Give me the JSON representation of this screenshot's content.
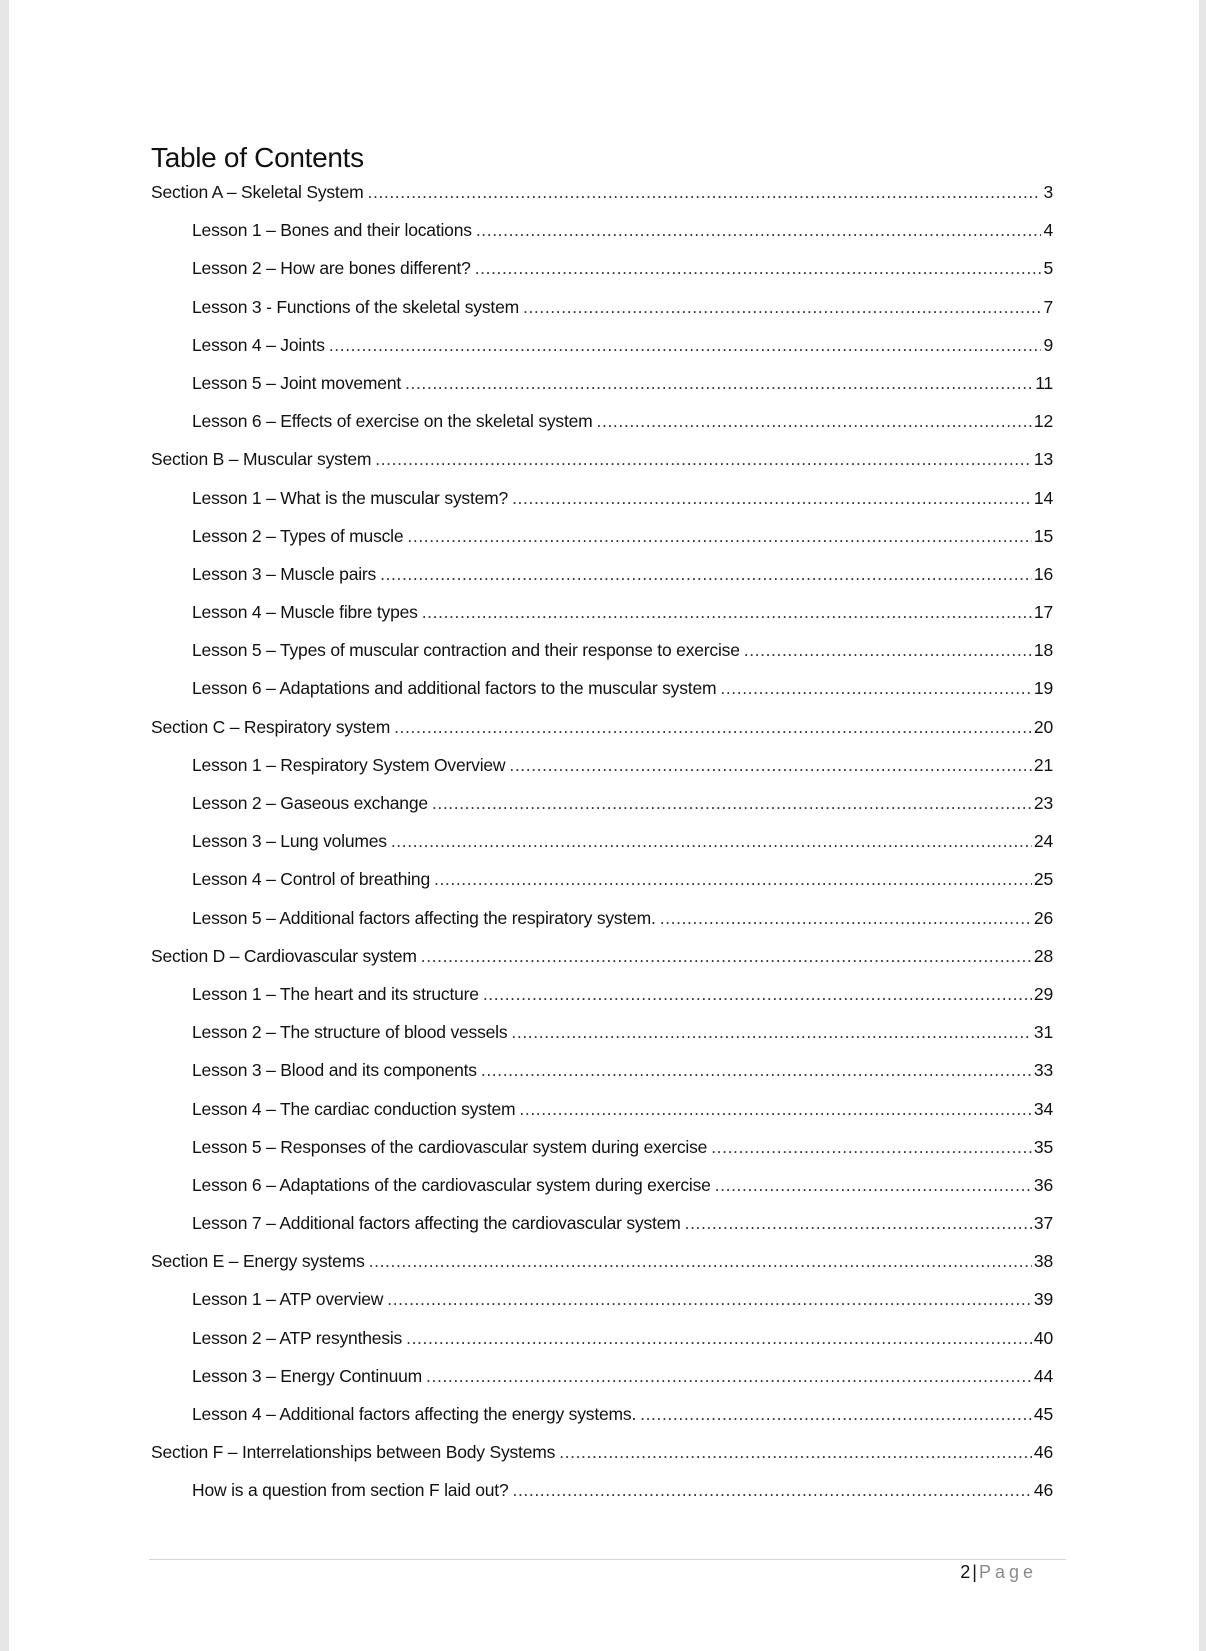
{
  "title": "Table of Contents",
  "entries": [
    {
      "level": "section",
      "label": "Section A – Skeletal System",
      "page": "3"
    },
    {
      "level": "lesson",
      "label": "Lesson 1 – Bones and their locations",
      "page": "4"
    },
    {
      "level": "lesson",
      "label": "Lesson 2 – How are bones different?",
      "page": "5"
    },
    {
      "level": "lesson",
      "label": "Lesson 3 - Functions of the skeletal system",
      "page": "7"
    },
    {
      "level": "lesson",
      "label": "Lesson 4 – Joints",
      "page": "9"
    },
    {
      "level": "lesson",
      "label": "Lesson 5 – Joint movement",
      "page": "11"
    },
    {
      "level": "lesson",
      "label": "Lesson 6 – Effects of exercise on the skeletal system",
      "page": "12"
    },
    {
      "level": "section",
      "label": "Section B – Muscular system",
      "page": "13"
    },
    {
      "level": "lesson",
      "label": "Lesson 1 – What is the muscular system?",
      "page": "14"
    },
    {
      "level": "lesson",
      "label": "Lesson 2 – Types of muscle",
      "page": "15"
    },
    {
      "level": "lesson",
      "label": "Lesson 3 – Muscle pairs",
      "page": "16"
    },
    {
      "level": "lesson",
      "label": "Lesson 4 – Muscle fibre types",
      "page": "17"
    },
    {
      "level": "lesson",
      "label": "Lesson 5 – Types of muscular contraction and their response to exercise",
      "page": "18"
    },
    {
      "level": "lesson",
      "label": "Lesson 6 – Adaptations and additional factors to the muscular system",
      "page": "19"
    },
    {
      "level": "section",
      "label": "Section C – Respiratory system",
      "page": "20"
    },
    {
      "level": "lesson",
      "label": "Lesson 1 – Respiratory System Overview",
      "page": "21"
    },
    {
      "level": "lesson",
      "label": "Lesson 2 – Gaseous exchange",
      "page": "23"
    },
    {
      "level": "lesson",
      "label": "Lesson 3 – Lung volumes",
      "page": "24"
    },
    {
      "level": "lesson",
      "label": "Lesson 4 – Control of breathing",
      "page": "25"
    },
    {
      "level": "lesson",
      "label": "Lesson 5 – Additional factors affecting the respiratory system.",
      "page": "26"
    },
    {
      "level": "section",
      "label": "Section D – Cardiovascular system",
      "page": "28"
    },
    {
      "level": "lesson",
      "label": "Lesson 1 – The heart and its structure",
      "page": "29"
    },
    {
      "level": "lesson",
      "label": "Lesson 2 – The structure of blood vessels",
      "page": "31"
    },
    {
      "level": "lesson",
      "label": "Lesson 3 – Blood and its components",
      "page": "33"
    },
    {
      "level": "lesson",
      "label": "Lesson 4 – The cardiac conduction system",
      "page": "34"
    },
    {
      "level": "lesson",
      "label": "Lesson 5 – Responses of the cardiovascular system during exercise",
      "page": "35"
    },
    {
      "level": "lesson",
      "label": "Lesson 6 – Adaptations of the cardiovascular system during exercise",
      "page": "36"
    },
    {
      "level": "lesson",
      "label": "Lesson 7 – Additional factors affecting the cardiovascular system",
      "page": "37"
    },
    {
      "level": "section",
      "label": "Section E – Energy systems",
      "page": "38"
    },
    {
      "level": "lesson",
      "label": "Lesson 1 – ATP overview",
      "page": "39"
    },
    {
      "level": "lesson",
      "label": "Lesson 2 – ATP resynthesis",
      "page": "40"
    },
    {
      "level": "lesson",
      "label": "Lesson 3 – Energy Continuum",
      "page": "44"
    },
    {
      "level": "lesson",
      "label": "Lesson 4 – Additional factors affecting the energy systems.",
      "page": "45"
    },
    {
      "level": "section",
      "label": "Section F – Interrelationships between Body Systems",
      "page": "46"
    },
    {
      "level": "lesson",
      "label": "How is a question from section F laid out?",
      "page": "46"
    }
  ],
  "footer": {
    "page_number": "2",
    "separator": "|",
    "page_word": "Page"
  }
}
